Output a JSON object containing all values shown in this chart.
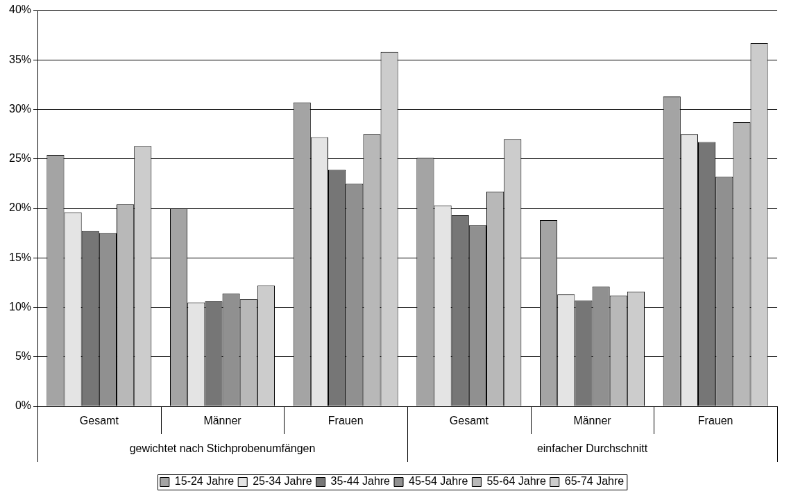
{
  "chart_data": {
    "type": "bar",
    "categories": [
      "Gesamt",
      "Männer",
      "Frauen",
      "Gesamt",
      "Männer",
      "Frauen"
    ],
    "annotations": [
      "gewichtet nach Stichprobenumfängen",
      "einfacher Durchschnitt"
    ],
    "series": [
      {
        "name": "15-24 Jahre",
        "color": "#a4a4a4",
        "values": [
          25.4,
          20.0,
          30.7,
          25.1,
          18.8,
          31.3
        ]
      },
      {
        "name": "25-34 Jahre",
        "color": "#e4e4e4",
        "values": [
          19.6,
          10.5,
          27.2,
          20.3,
          11.3,
          27.5
        ]
      },
      {
        "name": "35-44 Jahre",
        "color": "#767676",
        "values": [
          17.7,
          10.6,
          23.9,
          19.3,
          10.7,
          26.7
        ]
      },
      {
        "name": "45-54 Jahre",
        "color": "#909090",
        "values": [
          17.5,
          11.4,
          22.5,
          18.3,
          12.1,
          23.2
        ]
      },
      {
        "name": "55-64 Jahre",
        "color": "#b8b8b8",
        "values": [
          20.4,
          10.8,
          27.5,
          21.7,
          11.2,
          28.7
        ]
      },
      {
        "name": "65-74 Jahre",
        "color": "#cccccc",
        "values": [
          26.3,
          12.2,
          35.8,
          27.0,
          11.6,
          36.7
        ]
      }
    ],
    "ylim": [
      0,
      40
    ],
    "yticks": [
      {
        "value": 0,
        "label": "0%"
      },
      {
        "value": 5,
        "label": "5%"
      },
      {
        "value": 10,
        "label": "10%"
      },
      {
        "value": 15,
        "label": "15%"
      },
      {
        "value": 20,
        "label": "20%"
      },
      {
        "value": 25,
        "label": "25%"
      },
      {
        "value": 30,
        "label": "30%"
      },
      {
        "value": 35,
        "label": "35%"
      },
      {
        "value": 40,
        "label": "40%"
      }
    ],
    "grid": "y",
    "legend": "bottom"
  }
}
